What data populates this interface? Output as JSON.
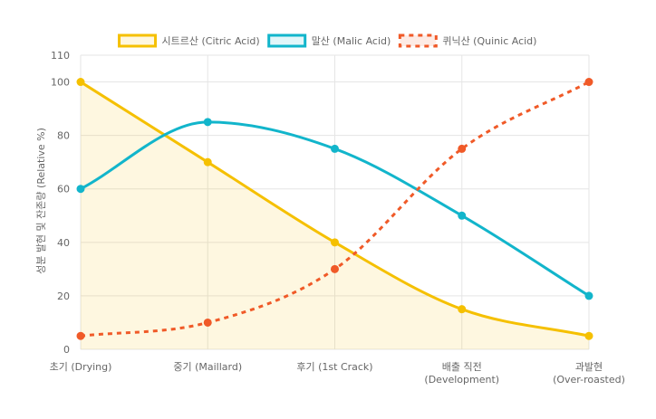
{
  "chart_data": {
    "type": "line",
    "categories": [
      [
        "초기 (Drying)"
      ],
      [
        "중기 (Maillard)"
      ],
      [
        "후기 (1st Crack)"
      ],
      [
        "배출 직전",
        "(Development)"
      ],
      [
        "과발현",
        "(Over-roasted)"
      ]
    ],
    "series": [
      {
        "name": "시트르산 (Citric Acid)",
        "values": [
          100,
          70,
          40,
          15,
          5
        ],
        "color": "#f5c000",
        "fill": "rgba(245,192,0,0.12)",
        "dashed": false,
        "filled": true
      },
      {
        "name": "말산 (Malic Acid)",
        "values": [
          60,
          85,
          75,
          50,
          20
        ],
        "color": "#12b5cb",
        "dashed": false,
        "filled": false
      },
      {
        "name": "퀴닉산 (Quinic Acid)",
        "values": [
          5,
          10,
          30,
          75,
          100
        ],
        "color": "#f05a28",
        "dashed": true,
        "filled": false
      }
    ],
    "ylabel": "성분 발현 및 잔존량 (Relative %)",
    "xlabel": "",
    "ylim": [
      0,
      110
    ],
    "yticks": [
      0,
      20,
      40,
      60,
      80,
      100,
      110
    ],
    "grid": true,
    "legend_position": "top"
  }
}
